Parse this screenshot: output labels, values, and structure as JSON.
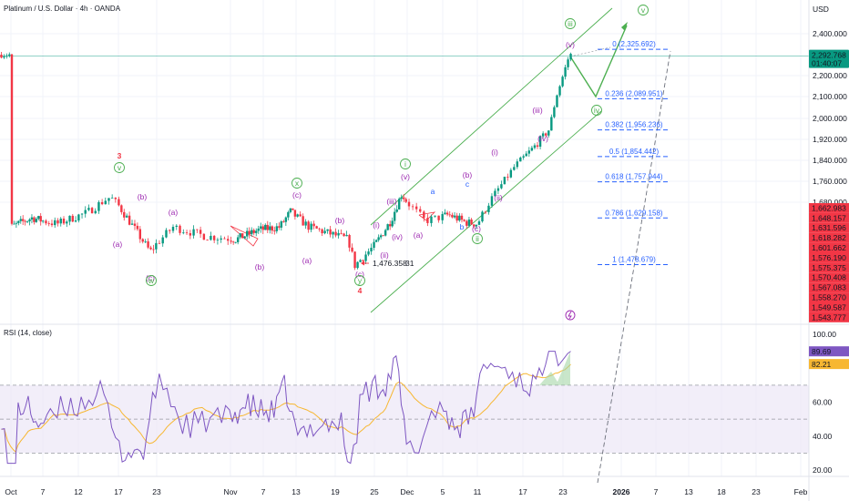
{
  "header": {
    "symbol_title": "Platinum / U.S. Dollar · 4h · OANDA",
    "currency": "USD",
    "rsi_title": "RSI (14, close)"
  },
  "colors": {
    "up": "#089981",
    "down": "#f23645",
    "wave_purple": "#9c27b0",
    "wave_green": "#4caf50",
    "wave_red": "#f23645",
    "fib_blue": "#2962ff",
    "rsi_line": "#7e57c2",
    "rsi_ma": "#f7b731",
    "rsi_band": "#ede7f6",
    "price_tag": "#089981",
    "low_tag": "#f23645"
  },
  "price_axis": {
    "ticks": [
      "2,400.000",
      "2,200.000",
      "2,100.000",
      "2,000.000",
      "1,920.000",
      "1,840.000",
      "1,760.000",
      "1,680.000"
    ],
    "current_price": "2,292.768",
    "countdown": "01:40:07",
    "stacked_tags": [
      "1,662.983",
      "1,648.157",
      "1,631.596",
      "1,618.282",
      "1,601.662",
      "1,576.190",
      "1,575.375",
      "1,570.408",
      "1,567.083",
      "1,558.270",
      "1,549.587",
      "1,543.777"
    ]
  },
  "rsi_axis": {
    "ticks": [
      "100.00",
      "60.00",
      "40.00",
      "20.00"
    ],
    "value_tag": "89.69",
    "ma_tag": "82.21"
  },
  "time_axis": {
    "labels": [
      "Oct",
      "7",
      "12",
      "17",
      "23",
      "Nov",
      "7",
      "13",
      "19",
      "25",
      "Dec",
      "5",
      "11",
      "17",
      "23",
      "2026",
      "7",
      "13",
      "18",
      "23",
      "Feb"
    ]
  },
  "low_annotation": "1,476.358",
  "low_annotation_suffix": "31",
  "fibonacci": [
    {
      "level": "0",
      "price": "2,325.692",
      "label": "0 (2,325.692)"
    },
    {
      "level": "0.236",
      "price": "2,089.951",
      "label": "0.236 (2,089.951)"
    },
    {
      "level": "0.382",
      "price": "1,956.236",
      "label": "0.382 (1,956.236)"
    },
    {
      "level": "0.5",
      "price": "1,854.442",
      "label": "0.5 (1,854.442)"
    },
    {
      "level": "0.618",
      "price": "1,757.944",
      "label": "0.618 (1,757.944)"
    },
    {
      "level": "0.786",
      "price": "1,629.158",
      "label": "0.786 (1,629.158)"
    },
    {
      "level": "1",
      "price": "1,478.679",
      "label": "1 (1,478.679)"
    }
  ],
  "wave_labels": [
    {
      "text": "3",
      "color": "red"
    },
    {
      "text": "v",
      "color": "green-circle"
    },
    {
      "text": "(a)",
      "color": "purple"
    },
    {
      "text": "(b)",
      "color": "purple"
    },
    {
      "text": "(c)",
      "color": "purple"
    },
    {
      "text": "w",
      "color": "green-circle"
    },
    {
      "text": "(a)",
      "color": "purple"
    },
    {
      "text": "(b)",
      "color": "purple"
    },
    {
      "text": "x",
      "color": "green-circle"
    },
    {
      "text": "(c)",
      "color": "purple"
    },
    {
      "text": "(a)",
      "color": "purple"
    },
    {
      "text": "(b)",
      "color": "purple"
    },
    {
      "text": "(c)",
      "color": "purple"
    },
    {
      "text": "y",
      "color": "green-circle"
    },
    {
      "text": "4",
      "color": "red"
    },
    {
      "text": "(i)",
      "color": "purple"
    },
    {
      "text": "(ii)",
      "color": "purple"
    },
    {
      "text": "(iii)",
      "color": "purple"
    },
    {
      "text": "(iv)",
      "color": "purple"
    },
    {
      "text": "(v)",
      "color": "purple"
    },
    {
      "text": "i",
      "color": "green-circle"
    },
    {
      "text": "(a)",
      "color": "purple"
    },
    {
      "text": "a",
      "color": "blue"
    },
    {
      "text": "b",
      "color": "blue"
    },
    {
      "text": "c",
      "color": "blue"
    },
    {
      "text": "(b)",
      "color": "purple"
    },
    {
      "text": "(c)",
      "color": "purple"
    },
    {
      "text": "ii",
      "color": "green-circle"
    },
    {
      "text": "(i)",
      "color": "purple"
    },
    {
      "text": "(ii)",
      "color": "purple"
    },
    {
      "text": "(iii)",
      "color": "purple"
    },
    {
      "text": "(iv)",
      "color": "purple"
    },
    {
      "text": "(v)",
      "color": "purple"
    },
    {
      "text": "iii",
      "color": "green-circle"
    },
    {
      "text": "iv",
      "color": "green-circle"
    },
    {
      "text": "v",
      "color": "green-circle"
    }
  ],
  "chart_data": {
    "type": "candlestick",
    "title": "Platinum / U.S. Dollar · 4h · OANDA",
    "y_axis_unit": "USD",
    "last_price": 2292.768,
    "recorded_low": 1476.358,
    "approx_swing_points": [
      {
        "time": "Oct 1",
        "price": 1600
      },
      {
        "time": "Oct 16",
        "price": 1700,
        "label": "3"
      },
      {
        "time": "Oct 22",
        "price": 1520,
        "label": "w"
      },
      {
        "time": "Nov 12",
        "price": 1650,
        "label": "x"
      },
      {
        "time": "Nov 21",
        "price": 1476,
        "label": "4"
      },
      {
        "time": "Dec 1",
        "price": 1700,
        "label": "i"
      },
      {
        "time": "Dec 11",
        "price": 1610,
        "label": "ii"
      },
      {
        "time": "Dec 23",
        "price": 2300
      }
    ],
    "fibonacci_retracement": [
      {
        "ratio": 0,
        "price": 2325.692
      },
      {
        "ratio": 0.236,
        "price": 2089.951
      },
      {
        "ratio": 0.382,
        "price": 1956.236
      },
      {
        "ratio": 0.5,
        "price": 1854.442
      },
      {
        "ratio": 0.618,
        "price": 1757.944
      },
      {
        "ratio": 0.786,
        "price": 1629.158
      },
      {
        "ratio": 1,
        "price": 1478.679
      }
    ],
    "rsi": {
      "length": 14,
      "source": "close",
      "last": 89.69,
      "ma_last": 82.21,
      "band": [
        30,
        70
      ]
    }
  }
}
